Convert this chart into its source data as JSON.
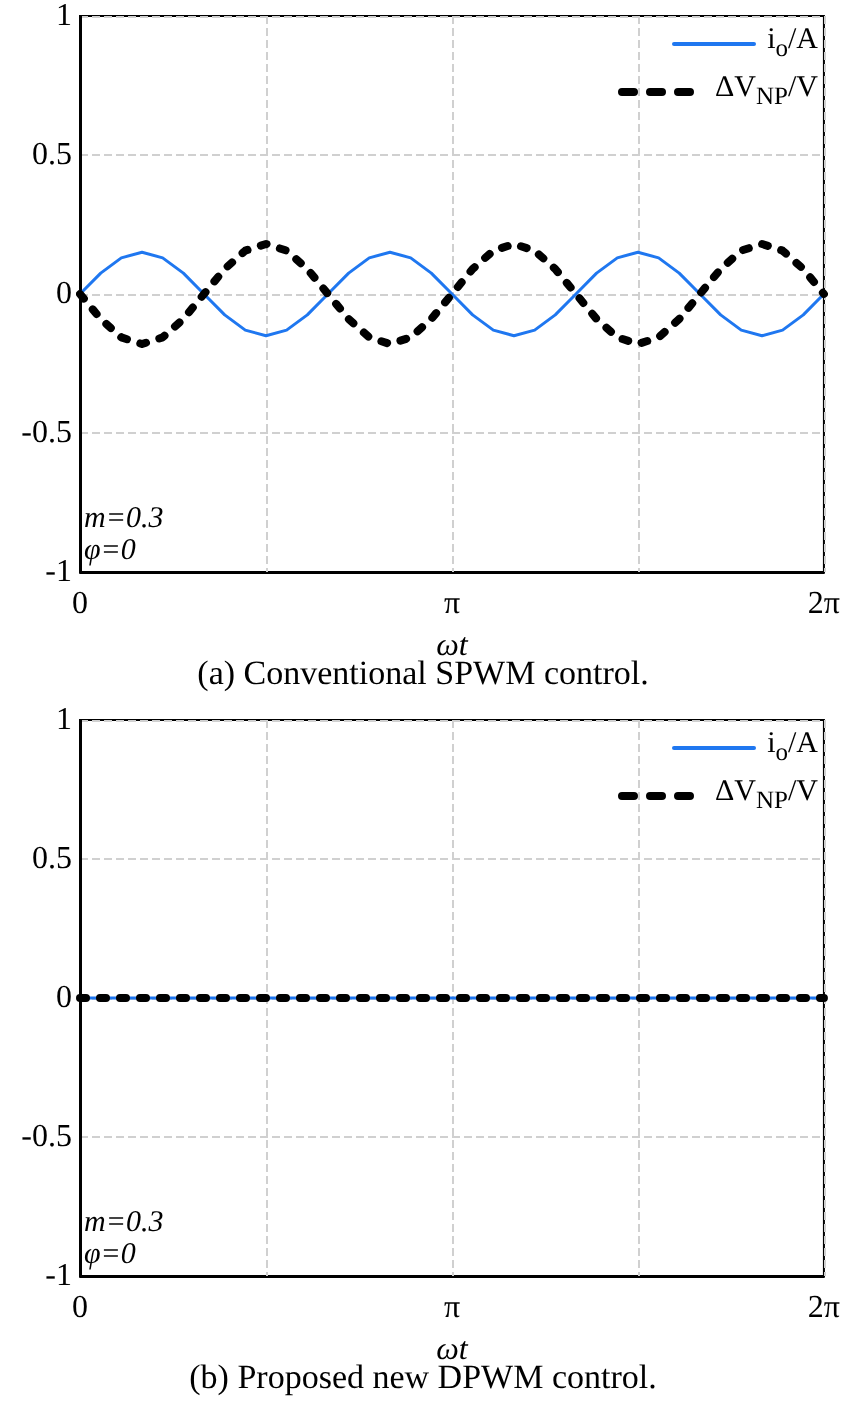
{
  "chart_data": [
    {
      "type": "line",
      "title": "(a) Conventional SPWM control.",
      "xlabel": "ωt",
      "x": [
        0,
        0.175,
        0.349,
        0.524,
        0.698,
        0.873,
        1.047,
        1.222,
        1.396,
        1.571,
        1.745,
        1.92,
        2.094,
        2.269,
        2.443,
        2.618,
        2.793,
        2.967,
        3.142,
        3.316,
        3.491,
        3.665,
        3.84,
        4.014,
        4.189,
        4.363,
        4.538,
        4.712,
        4.887,
        5.061,
        5.236,
        5.411,
        5.585,
        5.76,
        5.934,
        6.109,
        6.283
      ],
      "series": [
        {
          "name": "i$_{o}$/A",
          "color": "#1f77f0",
          "line_style": "solid",
          "values": [
            0,
            0.075,
            0.13,
            0.15,
            0.13,
            0.075,
            0,
            -0.075,
            -0.13,
            -0.15,
            -0.13,
            -0.075,
            0,
            0.075,
            0.13,
            0.15,
            0.13,
            0.075,
            0,
            -0.075,
            -0.13,
            -0.15,
            -0.13,
            -0.075,
            0,
            0.075,
            0.13,
            0.15,
            0.13,
            0.075,
            0,
            -0.075,
            -0.13,
            -0.15,
            -0.13,
            -0.075,
            0
          ]
        },
        {
          "name": "ΔV$_{NP}$/V",
          "color": "#000000",
          "line_style": "dotted",
          "values": [
            0,
            -0.09,
            -0.156,
            -0.18,
            -0.156,
            -0.09,
            0,
            0.09,
            0.156,
            0.18,
            0.156,
            0.09,
            0,
            -0.09,
            -0.156,
            -0.18,
            -0.156,
            -0.09,
            0,
            0.09,
            0.156,
            0.18,
            0.156,
            0.09,
            0,
            -0.09,
            -0.156,
            -0.18,
            -0.156,
            -0.09,
            0,
            0.09,
            0.156,
            0.18,
            0.156,
            0.09,
            0
          ]
        }
      ],
      "xlim": [
        0,
        6.2832
      ],
      "xticks": [
        {
          "value": 0,
          "label": "0"
        },
        {
          "value": 1.5708,
          "label": null
        },
        {
          "value": 3.1416,
          "label": "π"
        },
        {
          "value": 4.7124,
          "label": null
        },
        {
          "value": 6.2832,
          "label": "2π"
        }
      ],
      "ylim": [
        -1,
        1
      ],
      "yticks": [
        -1,
        -0.5,
        0,
        0.5,
        1
      ],
      "grid": true,
      "legend": "top right",
      "marker": "none",
      "annotations": [
        "m=0.3",
        "φ=0"
      ]
    },
    {
      "type": "line",
      "title": "(b) Proposed new DPWM control.",
      "xlabel": "ωt",
      "x": [
        0,
        6.2832
      ],
      "series": [
        {
          "name": "i$_{o}$/A",
          "color": "#1f77f0",
          "line_style": "solid",
          "values": [
            0,
            0
          ]
        },
        {
          "name": "ΔV$_{NP}$/V",
          "color": "#000000",
          "line_style": "dotted",
          "values": [
            0,
            0
          ]
        }
      ],
      "xlim": [
        0,
        6.2832
      ],
      "xticks": [
        {
          "value": 0,
          "label": "0"
        },
        {
          "value": 1.5708,
          "label": null
        },
        {
          "value": 3.1416,
          "label": "π"
        },
        {
          "value": 4.7124,
          "label": null
        },
        {
          "value": 6.2832,
          "label": "2π"
        }
      ],
      "ylim": [
        -1,
        1
      ],
      "yticks": [
        -1,
        -0.5,
        0,
        0.5,
        1
      ],
      "grid": true,
      "legend": "top right",
      "marker": "none",
      "annotations": [
        "m=0.3",
        "φ=0"
      ]
    }
  ]
}
